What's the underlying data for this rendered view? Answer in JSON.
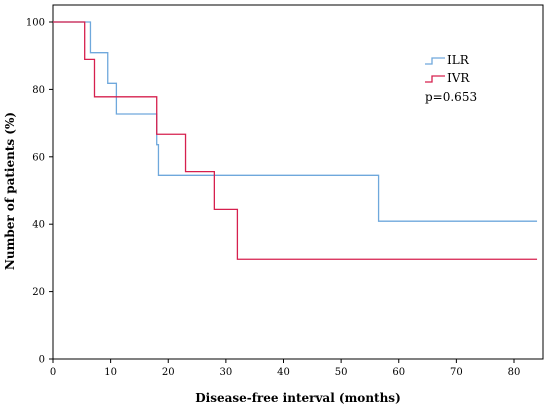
{
  "chart_data": {
    "type": "line",
    "step": true,
    "title": "",
    "xlabel": "Disease-free interval (months)",
    "ylabel": "Number of patients (%)",
    "xlim": [
      0,
      84
    ],
    "ylim": [
      0,
      105
    ],
    "xticks": [
      0,
      10,
      20,
      30,
      40,
      50,
      60,
      70,
      80
    ],
    "yticks": [
      0,
      20,
      40,
      60,
      80,
      100
    ],
    "grid": false,
    "legend_position": "top-right",
    "annotation": "p=0.653",
    "series": [
      {
        "name": "ILR",
        "color": "#6fa8dc",
        "x": [
          0,
          6.5,
          9.5,
          11,
          18,
          18.3,
          56.5,
          84
        ],
        "y": [
          100,
          90.9,
          81.8,
          72.7,
          63.6,
          54.5,
          40.9,
          40.9
        ]
      },
      {
        "name": "IVR",
        "color": "#d6204e",
        "x": [
          0,
          5.5,
          7.2,
          18,
          23,
          28,
          32,
          84
        ],
        "y": [
          100,
          88.9,
          77.8,
          66.7,
          55.6,
          44.4,
          29.6,
          29.6
        ]
      }
    ]
  }
}
